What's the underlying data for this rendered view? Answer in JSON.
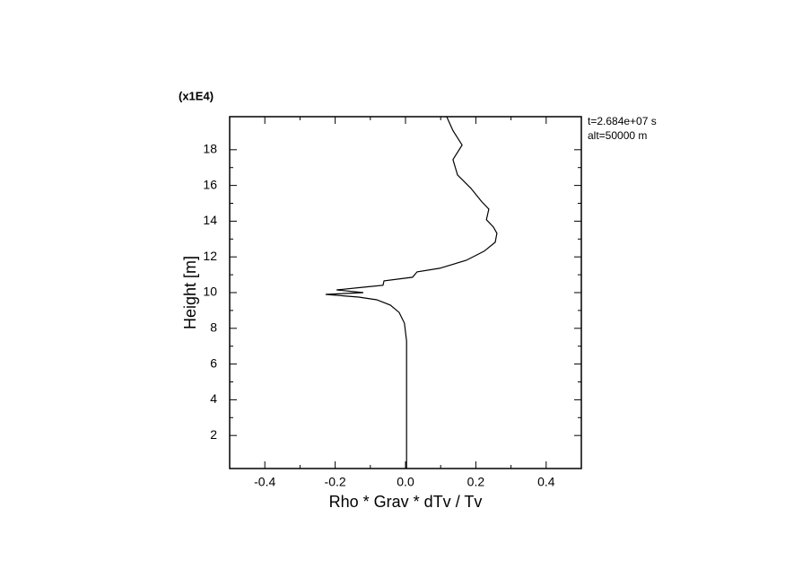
{
  "chart_data": {
    "type": "line",
    "multiplier": "(x1E4)",
    "annotations": [
      "t=2.684e+07 s",
      "alt=50000 m"
    ],
    "xlabel": "Rho * Grav * dTv / Tv",
    "ylabel": "Height [m]",
    "xlim": [
      -0.5,
      0.5
    ],
    "xticks": [
      -0.4,
      -0.2,
      {
        "value": 0,
        "label": "0.0"
      },
      0.2,
      0.4
    ],
    "ylim": [
      0.15,
      19.85
    ],
    "yticks": [
      2,
      4,
      6,
      8,
      10,
      12,
      14,
      16,
      18
    ],
    "color": "#000000",
    "x": [
      0.003,
      0.003,
      -0.003,
      -0.018,
      -0.043,
      -0.082,
      -0.133,
      -0.227,
      -0.12,
      -0.196,
      -0.12,
      -0.064,
      -0.061,
      0.02,
      0.033,
      0.097,
      0.173,
      0.224,
      0.255,
      0.26,
      0.25,
      0.23,
      0.237,
      0.217,
      0.186,
      0.148,
      0.135,
      0.161,
      0.135,
      0.117
    ],
    "values": [
      0.15,
      7.29,
      8.29,
      8.89,
      9.3,
      9.6,
      9.75,
      9.9,
      10.0,
      10.15,
      10.3,
      10.41,
      10.66,
      10.86,
      11.16,
      11.36,
      11.81,
      12.32,
      12.82,
      13.32,
      13.67,
      14.08,
      14.68,
      15.08,
      15.84,
      16.59,
      17.45,
      18.26,
      19.07,
      19.85
    ]
  }
}
